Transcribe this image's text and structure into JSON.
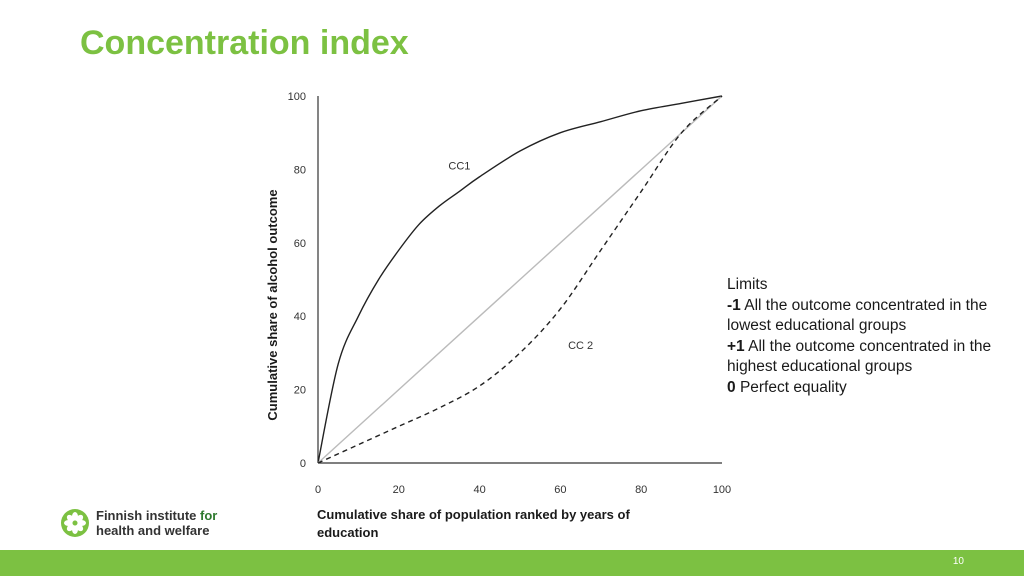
{
  "title": "Concentration index",
  "limits": {
    "heading": "Limits",
    "items": [
      {
        "value": "-1",
        "text": "All the outcome concentrated in the lowest educational groups"
      },
      {
        "value": "+1",
        "text": "All the outcome concentrated in the highest educational groups"
      },
      {
        "value": "0",
        "text": "Perfect equality"
      }
    ]
  },
  "logo": {
    "line1": "Finnish institute",
    "line1_for": "for",
    "line2": "health and welfare"
  },
  "page_number": "10",
  "chart_data": {
    "type": "line",
    "xlabel": "Cumulative share of population ranked by years of education",
    "ylabel": "Cumulative share of alcohol outcome",
    "xlim": [
      0,
      100
    ],
    "ylim": [
      0,
      100
    ],
    "x_ticks": [
      0,
      20,
      40,
      60,
      80,
      100
    ],
    "y_ticks": [
      0,
      20,
      40,
      60,
      80,
      100
    ],
    "grid": false,
    "series": [
      {
        "name": "CC1",
        "style": "solid",
        "color": "#222222",
        "x": [
          0,
          5,
          10,
          15,
          20,
          25,
          30,
          35,
          40,
          50,
          60,
          70,
          80,
          90,
          100
        ],
        "y": [
          0,
          27,
          40,
          50,
          58,
          65,
          70,
          74,
          78,
          85,
          90,
          93,
          96,
          98,
          100
        ]
      },
      {
        "name": "",
        "style": "solid",
        "color": "#bbbbbb",
        "x": [
          0,
          100
        ],
        "y": [
          0,
          100
        ]
      },
      {
        "name": "CC 2",
        "style": "dashed",
        "color": "#222222",
        "x": [
          0,
          10,
          20,
          30,
          40,
          50,
          60,
          70,
          80,
          90,
          100
        ],
        "y": [
          0,
          5,
          10,
          15,
          21,
          30,
          42,
          58,
          74,
          90,
          100
        ]
      }
    ],
    "annotations": [
      {
        "text": "CC1",
        "x": 35,
        "y": 80
      },
      {
        "text": "CC 2",
        "x": 65,
        "y": 31
      }
    ]
  }
}
